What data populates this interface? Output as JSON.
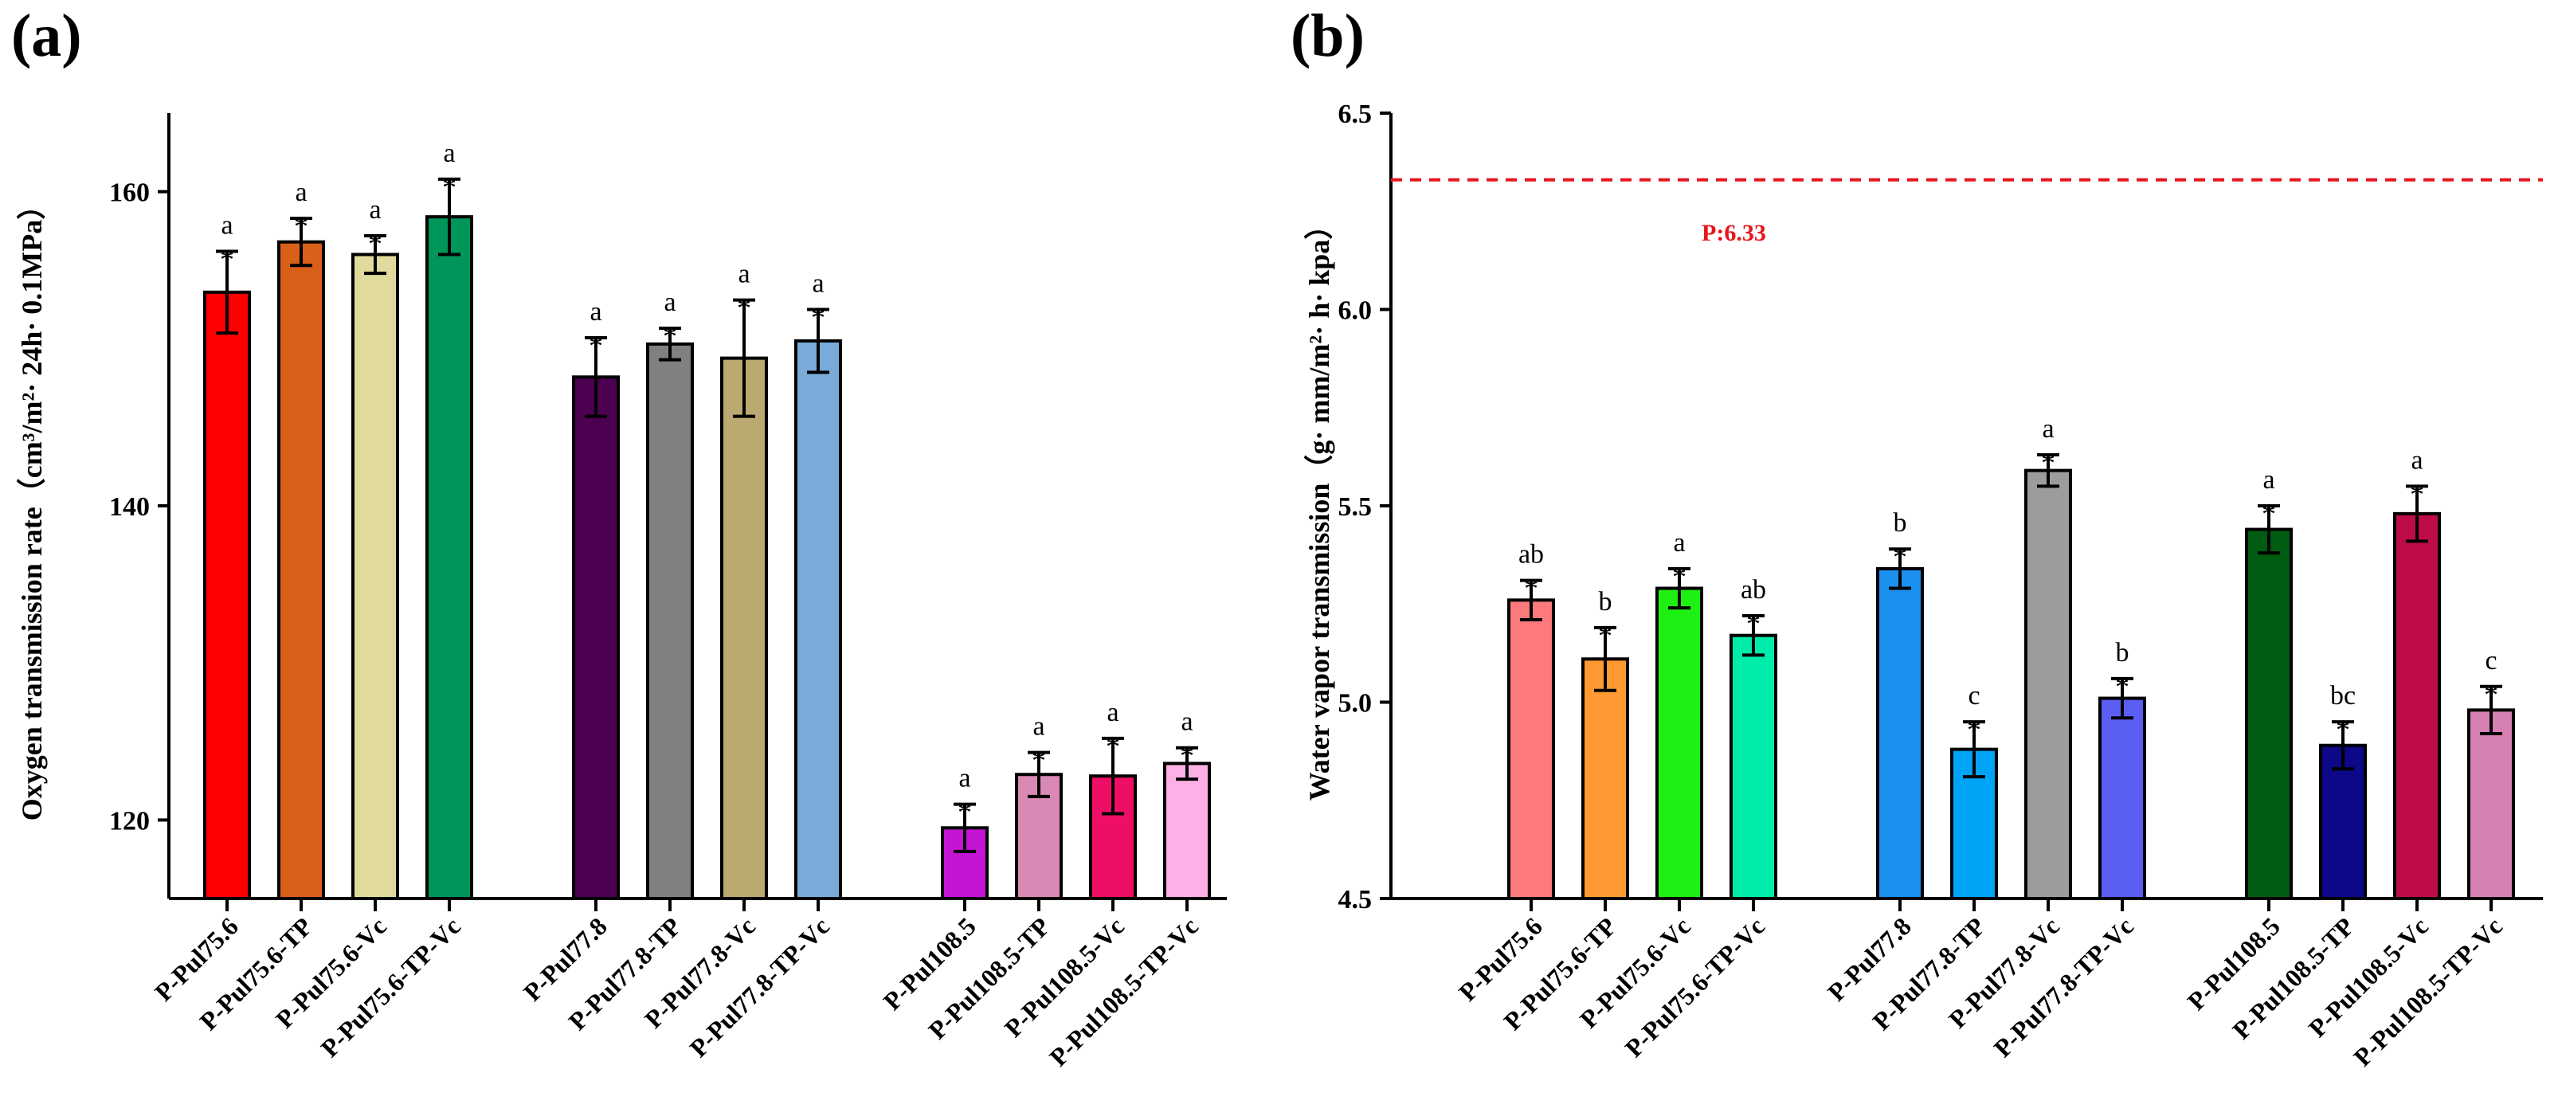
{
  "chart_data": [
    {
      "panel": "(a)",
      "type": "bar",
      "ylabel": "Oxygen transmission rate（cm³/m²· 24h· 0.1MPa）",
      "ylim": [
        115,
        165
      ],
      "yticks": [
        120,
        140,
        160
      ],
      "groups": [
        {
          "bars": [
            {
              "label": "P-Pul75.6",
              "value": 153.6,
              "err": 2.6,
              "sig": "a",
              "star": "*",
              "color": "#ff0000"
            },
            {
              "label": "P-Pul75.6-TP",
              "value": 156.8,
              "err": 1.5,
              "sig": "a",
              "star": "*",
              "color": "#d96018"
            },
            {
              "label": "P-Pul75.6-Vc",
              "value": 156.0,
              "err": 1.2,
              "sig": "a",
              "star": "*",
              "color": "#e0da9c"
            },
            {
              "label": "P-Pul75.6-TP-Vc",
              "value": 158.4,
              "err": 2.4,
              "sig": "a",
              "star": "*",
              "color": "#00965a"
            }
          ]
        },
        {
          "bars": [
            {
              "label": "P-Pul77.8",
              "value": 148.2,
              "err": 2.5,
              "sig": "a",
              "star": "*",
              "color": "#4b0050"
            },
            {
              "label": "P-Pul77.8-TP",
              "value": 150.3,
              "err": 1.0,
              "sig": "a",
              "star": "*",
              "color": "#808080"
            },
            {
              "label": "P-Pul77.8-Vc",
              "value": 149.4,
              "err": 3.7,
              "sig": "a",
              "star": "*",
              "color": "#bba972"
            },
            {
              "label": "P-Pul77.8-TP-Vc",
              "value": 150.5,
              "err": 2.0,
              "sig": "a",
              "star": "*",
              "color": "#7aaad8"
            }
          ]
        },
        {
          "bars": [
            {
              "label": "P-Pul108.5",
              "value": 119.5,
              "err": 1.5,
              "sig": "a",
              "star": "*",
              "color": "#c414d4"
            },
            {
              "label": "P-Pul108.5-TP",
              "value": 122.9,
              "err": 1.4,
              "sig": "a",
              "star": "*",
              "color": "#d88ab4"
            },
            {
              "label": "P-Pul108.5-Vc",
              "value": 122.8,
              "err": 2.4,
              "sig": "a",
              "star": "*",
              "color": "#ee0e66"
            },
            {
              "label": "P-Pul108.5-TP-Vc",
              "value": 123.6,
              "err": 1.0,
              "sig": "a",
              "star": "*",
              "color": "#fcb0e6"
            }
          ]
        }
      ]
    },
    {
      "panel": "(b)",
      "type": "bar",
      "ylabel": "Water vapor transmission（g· mm/m²· h· kpa）",
      "ylim": [
        4.5,
        6.5
      ],
      "yticks": [
        "4.5",
        "5.0",
        "5.5",
        "6.0",
        "6.5"
      ],
      "reference_line": {
        "value": 6.33,
        "label": "P:6.33",
        "color": "#e8141c"
      },
      "groups": [
        {
          "bars": [
            {
              "label": "P-Pul75.6",
              "value": 5.26,
              "err": 0.05,
              "sig": "ab",
              "star": "*",
              "color": "#fc7a7c"
            },
            {
              "label": "P-Pul75.6-TP",
              "value": 5.11,
              "err": 0.08,
              "sig": "b",
              "star": "*",
              "color": "#ff9a32"
            },
            {
              "label": "P-Pul75.6-Vc",
              "value": 5.29,
              "err": 0.05,
              "sig": "a",
              "star": "*",
              "color": "#1ef014"
            },
            {
              "label": "P-Pul75.6-TP-Vc",
              "value": 5.17,
              "err": 0.05,
              "sig": "ab",
              "star": "*",
              "color": "#00ecaa"
            }
          ]
        },
        {
          "bars": [
            {
              "label": "P-Pul77.8",
              "value": 5.34,
              "err": 0.05,
              "sig": "b",
              "star": "*",
              "color": "#1c90ee"
            },
            {
              "label": "P-Pul77.8-TP",
              "value": 4.88,
              "err": 0.07,
              "sig": "c",
              "star": "*",
              "color": "#00a4f6"
            },
            {
              "label": "P-Pul77.8-Vc",
              "value": 5.59,
              "err": 0.04,
              "sig": "a",
              "star": "*",
              "color": "#9c9c9c"
            },
            {
              "label": "P-Pul77.8-TP-Vc",
              "value": 5.01,
              "err": 0.05,
              "sig": "b",
              "star": "*",
              "color": "#5a5ef2"
            }
          ]
        },
        {
          "bars": [
            {
              "label": "P-Pul108.5",
              "value": 5.44,
              "err": 0.06,
              "sig": "a",
              "star": "*",
              "color": "#005c10"
            },
            {
              "label": "P-Pul108.5-TP",
              "value": 4.89,
              "err": 0.06,
              "sig": "bc",
              "star": "*",
              "color": "#0c0888"
            },
            {
              "label": "P-Pul108.5-Vc",
              "value": 5.48,
              "err": 0.07,
              "sig": "a",
              "star": "*",
              "color": "#be0c48"
            },
            {
              "label": "P-Pul108.5-TP-Vc",
              "value": 4.98,
              "err": 0.06,
              "sig": "c",
              "star": "*",
              "color": "#d680b4"
            }
          ]
        }
      ]
    }
  ]
}
